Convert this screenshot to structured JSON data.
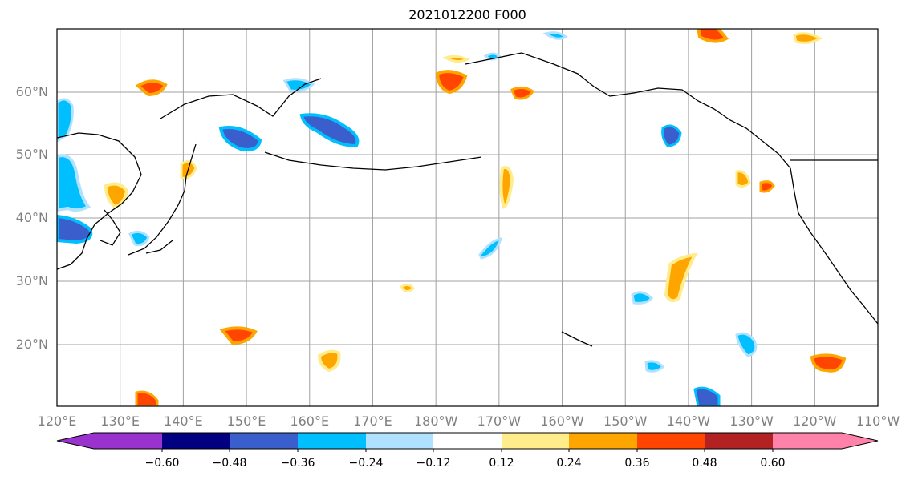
{
  "title": "2021012200 F000",
  "map": {
    "lat_labels": [
      "60°N",
      "50°N",
      "40°N",
      "30°N",
      "20°N"
    ],
    "lon_labels": [
      "120°E",
      "130°E",
      "140°E",
      "150°E",
      "160°E",
      "170°E",
      "180°W",
      "170°W",
      "160°W",
      "150°W",
      "140°W",
      "130°W",
      "120°W",
      "110°W"
    ],
    "colors": {
      "coast": "#000000",
      "grid": "#a0a0a0"
    }
  },
  "colorbar": {
    "tick_labels": [
      "−0.60",
      "−0.48",
      "−0.36",
      "−0.24",
      "−0.12",
      "0.12",
      "0.24",
      "0.36",
      "0.48",
      "0.60"
    ],
    "colors": [
      "#9a32cd",
      "#000080",
      "#3a5fcd",
      "#00bfff",
      "#b0e2ff",
      "#ffffff",
      "#ffec8b",
      "#ffa500",
      "#ff4500",
      "#b22222",
      "#ff82ab"
    ]
  }
}
